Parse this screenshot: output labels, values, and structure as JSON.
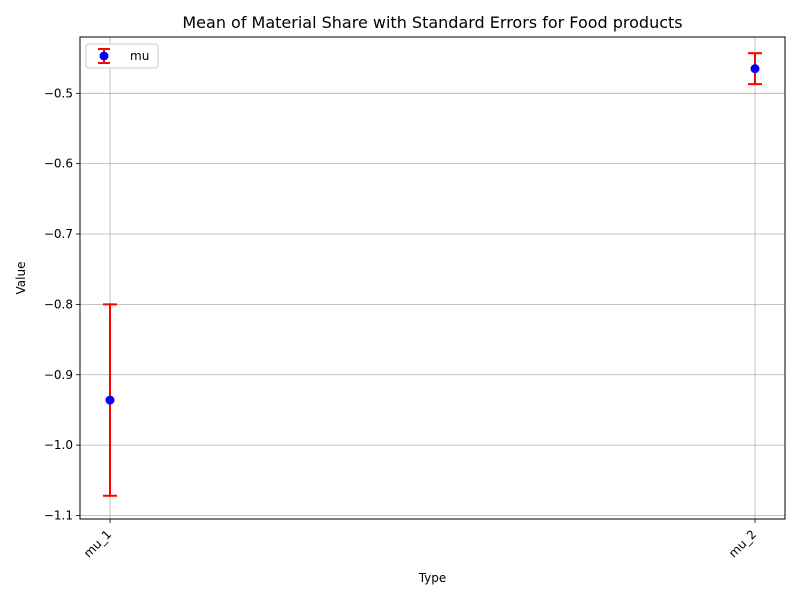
{
  "chart_data": {
    "type": "scatter",
    "title": "Mean of Material Share with Standard Errors for Food products",
    "xlabel": "Type",
    "ylabel": "Value",
    "categories": [
      "mu_1",
      "mu_2"
    ],
    "ylim": [
      -1.105,
      -0.42
    ],
    "yticks": [
      -1.1,
      -1.0,
      -0.9,
      -0.8,
      -0.7,
      -0.6,
      -0.5
    ],
    "ytick_labels": [
      "−1.1",
      "−1.0",
      "−0.9",
      "−0.8",
      "−0.7",
      "−0.6",
      "−0.5"
    ],
    "grid": true,
    "legend_position": "top-left",
    "series": [
      {
        "name": "mu",
        "values": [
          -0.936,
          -0.465
        ],
        "error_low": [
          -1.072,
          -0.487
        ],
        "error_high": [
          -0.8,
          -0.443
        ],
        "marker_color": "#0000ff",
        "errorbar_color": "#ff0000"
      }
    ]
  }
}
